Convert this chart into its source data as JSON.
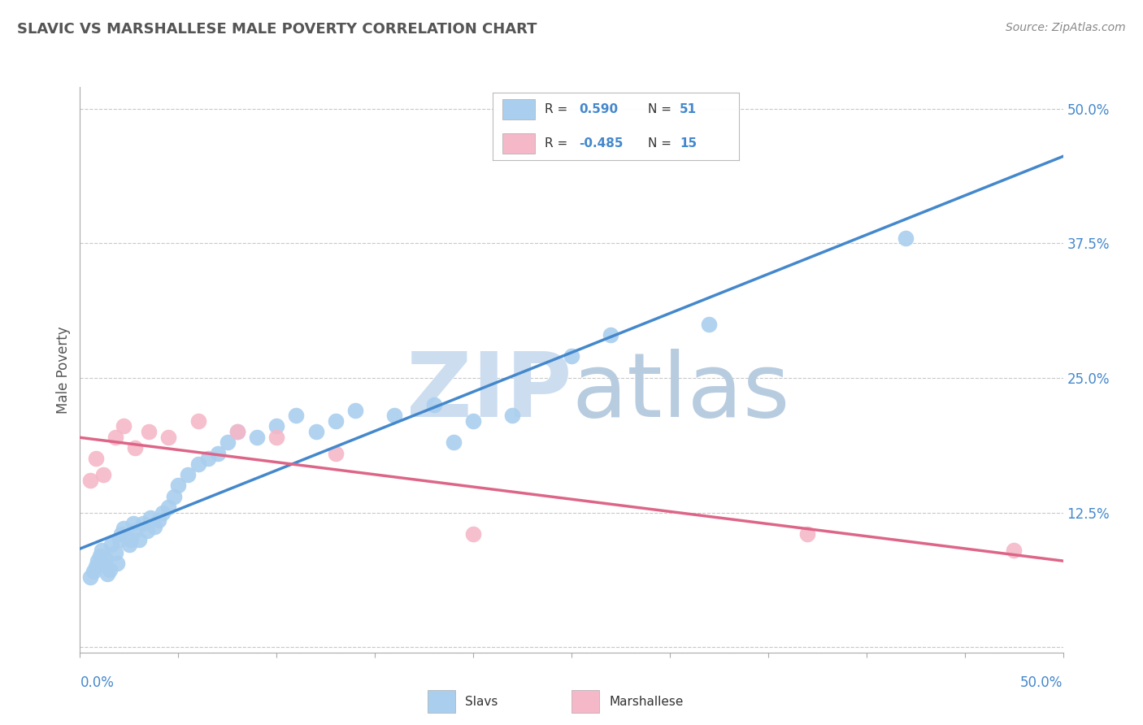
{
  "title": "SLAVIC VS MARSHALLESE MALE POVERTY CORRELATION CHART",
  "source": "Source: ZipAtlas.com",
  "ylabel": "Male Poverty",
  "xlim": [
    0.0,
    0.5
  ],
  "ylim": [
    -0.005,
    0.52
  ],
  "yticks": [
    0.0,
    0.125,
    0.25,
    0.375,
    0.5
  ],
  "ytick_labels": [
    "",
    "12.5%",
    "25.0%",
    "37.5%",
    "50.0%"
  ],
  "grid_color": "#c8c8c8",
  "background": "#ffffff",
  "slavs_color": "#aacfee",
  "marshallese_color": "#f5b8c8",
  "slavs_line_color": "#4488cc",
  "marshallese_line_color": "#dd6688",
  "slavs_x": [
    0.005,
    0.007,
    0.008,
    0.009,
    0.01,
    0.011,
    0.012,
    0.013,
    0.014,
    0.015,
    0.016,
    0.018,
    0.019,
    0.02,
    0.021,
    0.022,
    0.025,
    0.026,
    0.027,
    0.028,
    0.03,
    0.032,
    0.034,
    0.036,
    0.038,
    0.04,
    0.042,
    0.045,
    0.048,
    0.05,
    0.055,
    0.06,
    0.065,
    0.07,
    0.075,
    0.08,
    0.09,
    0.1,
    0.11,
    0.12,
    0.13,
    0.14,
    0.16,
    0.18,
    0.19,
    0.2,
    0.22,
    0.25,
    0.27,
    0.32,
    0.42
  ],
  "slavs_y": [
    0.065,
    0.07,
    0.075,
    0.08,
    0.085,
    0.09,
    0.078,
    0.082,
    0.068,
    0.072,
    0.095,
    0.088,
    0.078,
    0.1,
    0.105,
    0.11,
    0.095,
    0.1,
    0.115,
    0.108,
    0.1,
    0.115,
    0.108,
    0.12,
    0.112,
    0.118,
    0.125,
    0.13,
    0.14,
    0.15,
    0.16,
    0.17,
    0.175,
    0.18,
    0.19,
    0.2,
    0.195,
    0.205,
    0.215,
    0.2,
    0.21,
    0.22,
    0.215,
    0.225,
    0.19,
    0.21,
    0.215,
    0.27,
    0.29,
    0.3,
    0.38
  ],
  "marshallese_x": [
    0.005,
    0.008,
    0.012,
    0.018,
    0.022,
    0.028,
    0.035,
    0.045,
    0.06,
    0.08,
    0.1,
    0.13,
    0.2,
    0.37,
    0.475
  ],
  "marshallese_y": [
    0.155,
    0.175,
    0.16,
    0.195,
    0.205,
    0.185,
    0.2,
    0.195,
    0.21,
    0.2,
    0.195,
    0.18,
    0.105,
    0.105,
    0.09
  ],
  "legend_r_slavs": "R =  0.590",
  "legend_n_slavs": "N = 51",
  "legend_r_marsh": "R = -0.485",
  "legend_n_marsh": "N = 15",
  "axis_label_color": "#4488cc",
  "title_color": "#555555",
  "right_ytick_color": "#4488cc",
  "watermark_zip_color": "#ccddf0",
  "watermark_atlas_color": "#b8cce0"
}
